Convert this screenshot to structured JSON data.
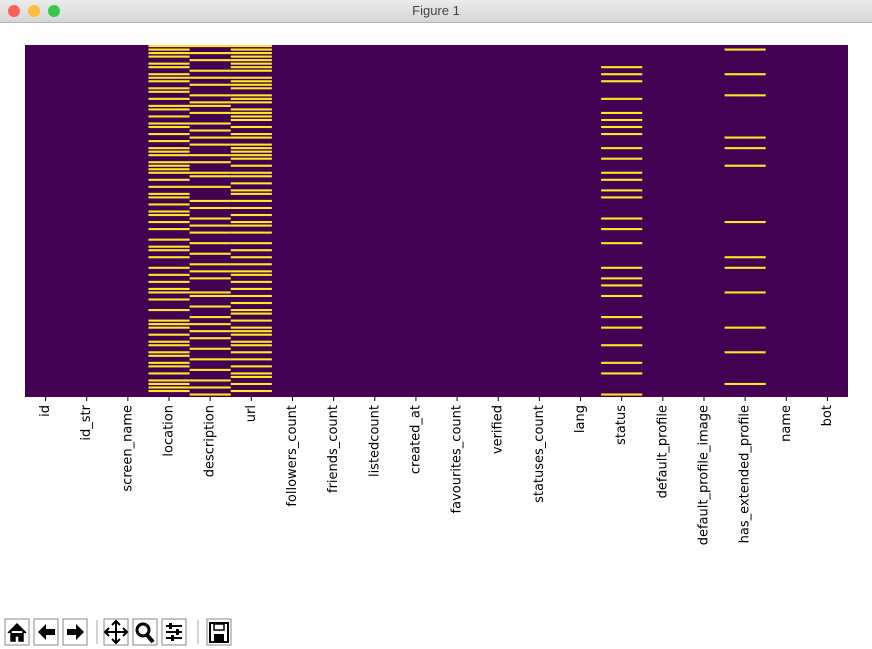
{
  "window": {
    "title": "Figure 1"
  },
  "chart_data": {
    "type": "heatmap",
    "categories": [
      "id",
      "id_str",
      "screen_name",
      "location",
      "description",
      "url",
      "followers_count",
      "friends_count",
      "listedcount",
      "created_at",
      "favourites_count",
      "verified",
      "statuses_count",
      "lang",
      "status",
      "default_profile",
      "default_profile_image",
      "has_extended_profile",
      "name",
      "bot"
    ],
    "ylim": [
      0,
      100
    ],
    "background_color": "#440154",
    "missing_color": "#fde725",
    "missing_rows": [
      [],
      [],
      [],
      [
        0,
        1,
        2,
        3,
        5,
        6,
        8,
        9,
        10,
        12,
        13,
        15,
        17,
        18,
        20,
        22,
        23,
        25,
        27,
        29,
        30,
        31,
        33,
        34,
        35,
        36,
        38,
        40,
        42,
        43,
        45,
        47,
        48,
        50,
        52,
        55,
        57,
        58,
        60,
        63,
        65,
        67,
        69,
        70,
        72,
        75,
        78,
        79,
        80,
        82,
        84,
        85,
        87,
        88,
        90,
        91,
        93,
        95,
        96,
        97,
        98
      ],
      [
        0,
        2,
        4,
        7,
        9,
        11,
        14,
        16,
        17,
        19,
        22,
        24,
        26,
        28,
        31,
        33,
        36,
        37,
        40,
        44,
        46,
        49,
        51,
        53,
        56,
        59,
        62,
        64,
        66,
        70,
        71,
        74,
        77,
        79,
        81,
        83,
        86,
        89,
        92,
        95,
        97,
        99
      ],
      [
        0,
        1,
        2,
        3,
        4,
        5,
        6,
        7,
        9,
        10,
        11,
        12,
        14,
        15,
        16,
        18,
        19,
        20,
        21,
        23,
        25,
        26,
        28,
        29,
        30,
        31,
        32,
        34,
        36,
        37,
        39,
        41,
        42,
        44,
        46,
        48,
        50,
        51,
        53,
        56,
        58,
        60,
        62,
        64,
        65,
        67,
        69,
        71,
        73,
        75,
        76,
        78,
        80,
        81,
        82,
        84,
        85,
        87,
        89,
        91,
        93,
        94,
        96,
        98
      ],
      [],
      [],
      [],
      [],
      [],
      [],
      [],
      [],
      [
        6,
        8,
        10,
        15,
        19,
        21,
        23,
        25,
        29,
        32,
        36,
        38,
        41,
        43,
        49,
        52,
        56,
        63,
        66,
        68,
        71,
        77,
        80,
        85,
        90,
        93,
        99
      ],
      [],
      [],
      [
        1,
        8,
        14,
        26,
        29,
        34,
        50,
        60,
        63,
        70,
        80,
        87,
        96
      ],
      [],
      []
    ]
  }
}
